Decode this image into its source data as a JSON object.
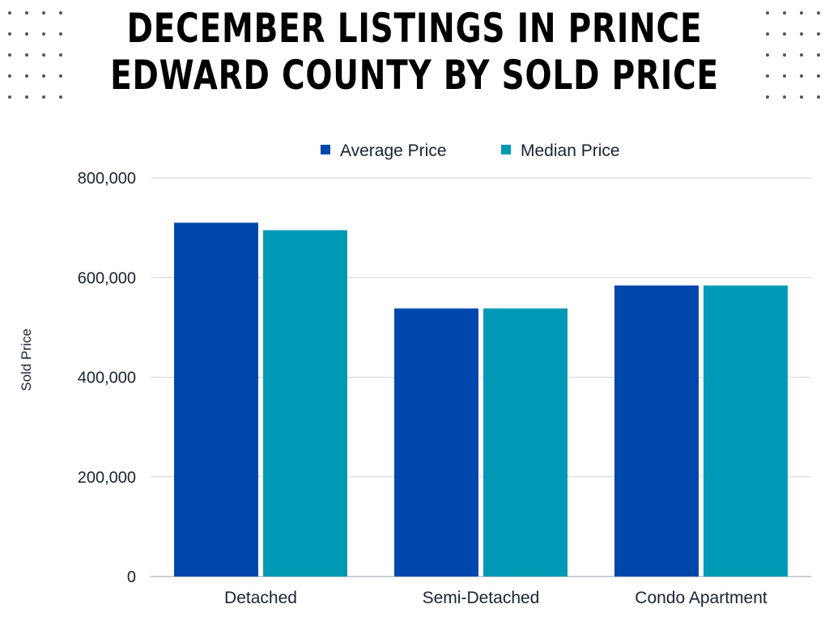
{
  "chart_data": {
    "type": "bar",
    "title": "DECEMBER LISTINGS IN PRINCE EDWARD COUNTY BY SOLD PRICE",
    "categories": [
      "Detached",
      "Semi-Detached",
      "Condo Apartment"
    ],
    "series": [
      {
        "name": "Average Price",
        "color": "#0047ab",
        "values": [
          710000,
          538000,
          584000
        ]
      },
      {
        "name": "Median Price",
        "color": "#0099b5",
        "values": [
          695000,
          538000,
          584000
        ]
      }
    ],
    "ylabel": "Sold Price",
    "xlabel": "",
    "ylim": [
      0,
      800000
    ],
    "yticks": [
      "0",
      "200,000",
      "400,000",
      "600,000",
      "800,000"
    ],
    "ytick_values": [
      0,
      200000,
      400000,
      600000,
      800000
    ],
    "legend_position": "top-center",
    "grid": true
  }
}
